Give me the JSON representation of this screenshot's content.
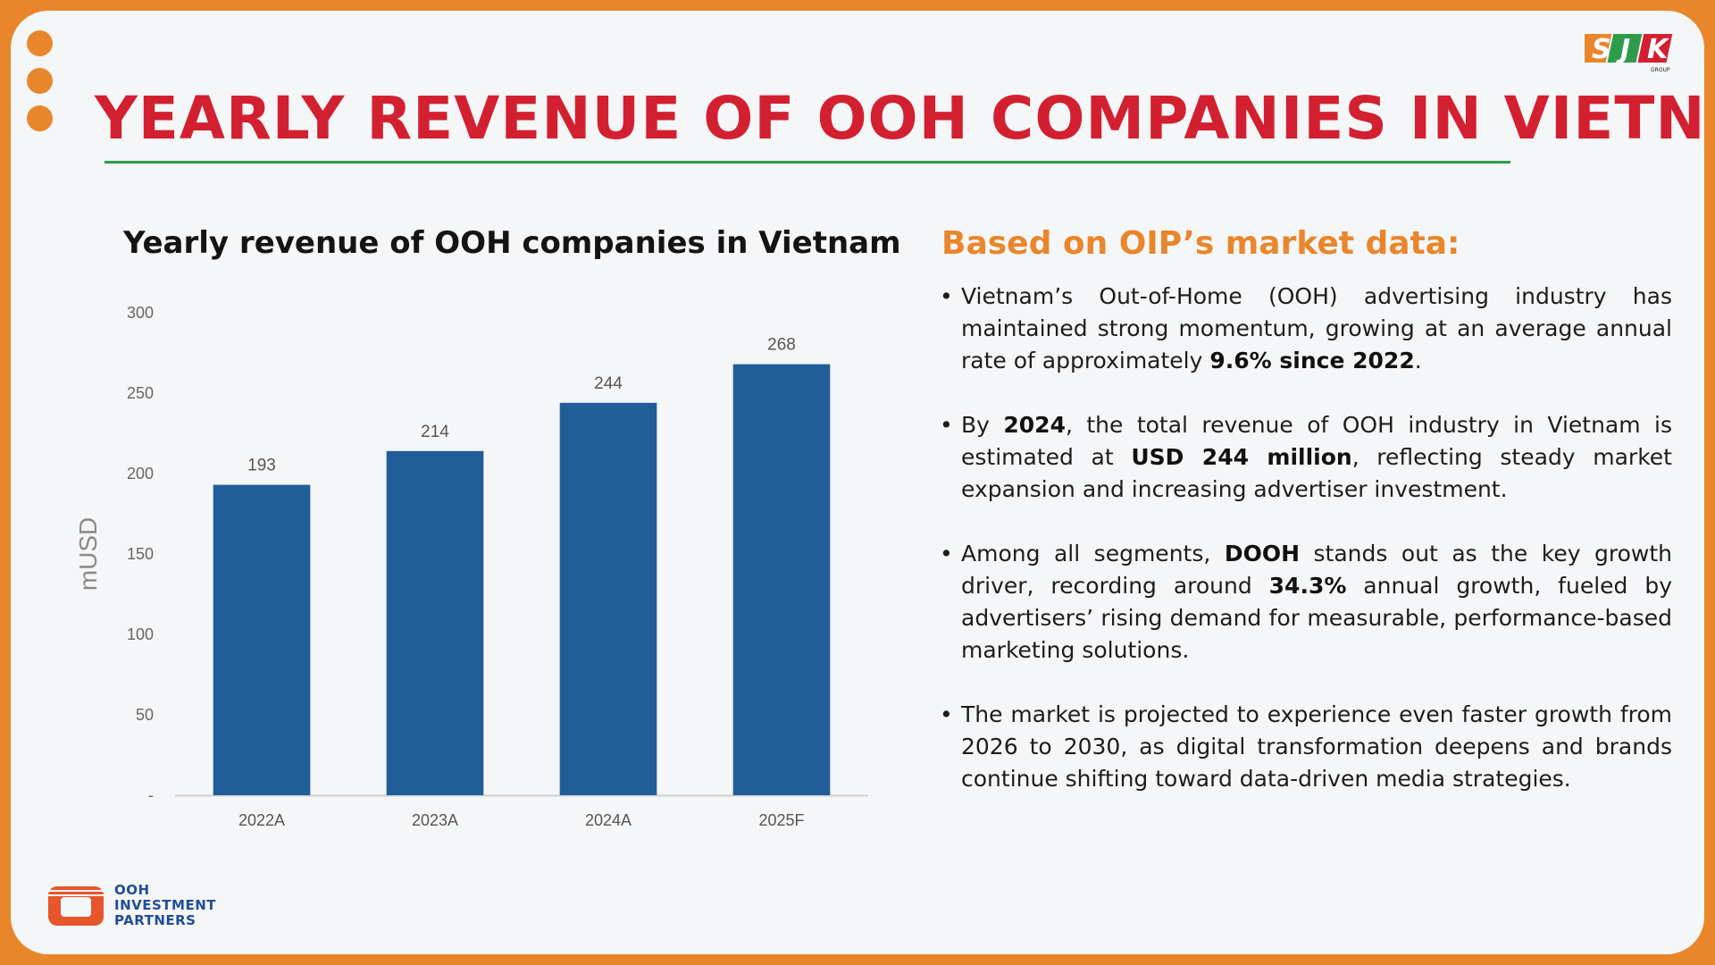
{
  "header": {
    "title": "YEARLY REVENUE OF OOH COMPANIES IN VIETNAM",
    "logo_text": "SJK",
    "logo_subtext": "GROUP"
  },
  "chart_data": {
    "type": "bar",
    "title": "Yearly revenue of OOH companies in Vietnam",
    "ylabel": "mUSD",
    "xlabel": "",
    "categories": [
      "2022A",
      "2023A",
      "2024A",
      "2025F"
    ],
    "values": [
      193,
      214,
      244,
      268
    ],
    "data_labels": [
      "193",
      "214",
      "244",
      "268"
    ],
    "ylim": [
      0,
      300
    ],
    "y_ticks": [
      0,
      50,
      100,
      150,
      200,
      250,
      300
    ],
    "y_tick_labels": [
      "-",
      "50",
      "100",
      "150",
      "200",
      "250",
      "300"
    ],
    "grid": false,
    "bar_color": "#215e99"
  },
  "insights": {
    "heading": "Based on OIP’s market data:",
    "bullet_char": "•",
    "bullets": [
      {
        "pre": "Vietnam’s Out-of-Home (OOH) advertising industry has maintained strong momentum, growing at an average annual rate of approximately ",
        "bold": "9.6% since 2022",
        "post": "."
      },
      {
        "pre": "By ",
        "bold": "2024",
        "mid": ", the total revenue of OOH industry in Vietnam is estimated at ",
        "bold2": "USD 244 million",
        "post": ", reflecting steady market expansion and increasing advertiser investment."
      },
      {
        "pre": "Among all segments, ",
        "bold": "DOOH",
        "mid": " stands out as the key growth driver, recording around ",
        "bold2": "34.3%",
        "post": " annual growth, fueled by advertisers’ rising demand for measurable, performance-based marketing solutions."
      },
      {
        "text": "The market is projected to experience even faster growth from 2026 to 2030, as digital transformation deepens and brands continue shifting toward data-driven media strategies."
      }
    ]
  },
  "footer": {
    "logo_lines": [
      "OOH",
      "INVESTMENT",
      "PARTNERS"
    ]
  },
  "colors": {
    "frame": "#e9862c",
    "title": "#d32031",
    "rule": "#2e9b4a",
    "heading": "#e9862c",
    "bar": "#215e99"
  }
}
